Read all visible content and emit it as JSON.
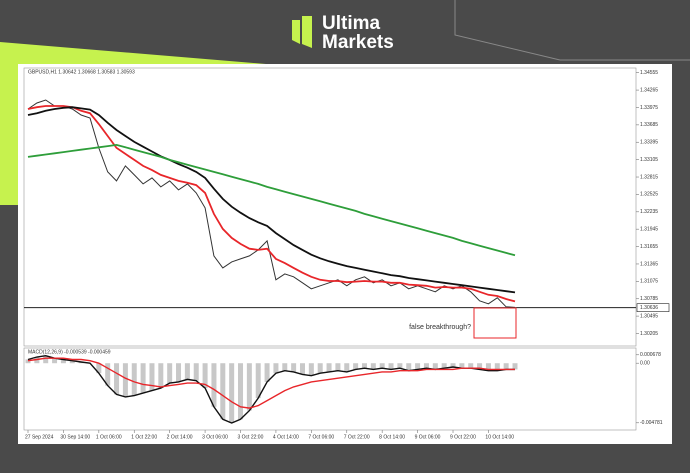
{
  "brand": {
    "line1": "Ultima",
    "line2": "Markets"
  },
  "chart_data": [
    {
      "type": "line",
      "title": "GBPUSD,H1  1.30642 1.30668 1.30583 1.30593",
      "annotation": "false breakthrough?",
      "current_price": 1.30636,
      "categories": [
        "27 Sep 2024",
        null,
        null,
        null,
        "30 Sep 14:00",
        null,
        null,
        null,
        "1 Oct 06:00",
        null,
        null,
        null,
        "1 Oct 22:00",
        null,
        null,
        null,
        "2 Oct 14:00",
        null,
        null,
        null,
        "3 Oct 06:00",
        null,
        null,
        null,
        "3 Oct 22:00",
        null,
        null,
        null,
        "4 Oct 14:00",
        null,
        null,
        null,
        "7 Oct 06:00",
        null,
        null,
        null,
        "7 Oct 22:00",
        null,
        null,
        null,
        "8 Oct 14:00",
        null,
        null,
        null,
        "9 Oct 06:00",
        null,
        null,
        null,
        "9 Oct 22:00",
        null,
        null,
        null,
        "10 Oct 14:00",
        null,
        null,
        null
      ],
      "ylim": [
        1.3003,
        1.346
      ],
      "yticks": [
        1.34555,
        1.34265,
        1.33975,
        1.33685,
        1.33395,
        1.33105,
        1.32815,
        1.32525,
        1.32235,
        1.31945,
        1.31655,
        1.31365,
        1.31075,
        1.30785,
        1.30495,
        1.30205
      ],
      "series": [
        {
          "color": "#333333",
          "width": 1,
          "values": [
            1.3395,
            1.3405,
            1.341,
            1.34,
            1.34,
            1.3395,
            1.3385,
            1.338,
            1.333,
            1.329,
            1.3275,
            1.33,
            1.3285,
            1.327,
            1.328,
            1.3265,
            1.3275,
            1.326,
            1.327,
            1.3255,
            1.323,
            1.315,
            1.313,
            1.314,
            1.3145,
            1.315,
            1.316,
            1.3175,
            1.311,
            1.312,
            1.3115,
            1.3105,
            1.3095,
            1.31,
            1.3105,
            1.311,
            1.31,
            1.311,
            1.3115,
            1.3105,
            1.311,
            1.31,
            1.3105,
            1.3095,
            1.31,
            1.3095,
            1.309,
            1.31,
            1.3095,
            1.31,
            1.309,
            1.3075,
            1.307,
            1.308,
            1.3065,
            1.3064
          ]
        },
        {
          "color": "#e8262a",
          "width": 1.8,
          "values": [
            1.3395,
            1.3398,
            1.34,
            1.34,
            1.34,
            1.3398,
            1.3392,
            1.3388,
            1.337,
            1.335,
            1.333,
            1.332,
            1.331,
            1.33,
            1.3293,
            1.3285,
            1.328,
            1.3275,
            1.3272,
            1.3268,
            1.3255,
            1.322,
            1.3195,
            1.318,
            1.317,
            1.3162,
            1.316,
            1.3162,
            1.3145,
            1.3138,
            1.313,
            1.3122,
            1.3115,
            1.311,
            1.3108,
            1.3108,
            1.3106,
            1.3107,
            1.3108,
            1.3107,
            1.3107,
            1.3105,
            1.3105,
            1.3102,
            1.3101,
            1.31,
            1.3097,
            1.3098,
            1.3097,
            1.3097,
            1.3095,
            1.309,
            1.3085,
            1.3083,
            1.3078,
            1.3074
          ]
        },
        {
          "color": "#111111",
          "width": 1.8,
          "values": [
            1.3385,
            1.3388,
            1.3392,
            1.3395,
            1.3397,
            1.3398,
            1.3396,
            1.3394,
            1.3385,
            1.3372,
            1.336,
            1.335,
            1.334,
            1.3332,
            1.3324,
            1.3316,
            1.331,
            1.3303,
            1.3297,
            1.329,
            1.328,
            1.3262,
            1.3245,
            1.3232,
            1.3222,
            1.3213,
            1.3206,
            1.32,
            1.3188,
            1.3178,
            1.3168,
            1.316,
            1.3152,
            1.3146,
            1.3141,
            1.3137,
            1.3133,
            1.313,
            1.3127,
            1.3124,
            1.3121,
            1.3118,
            1.3116,
            1.3113,
            1.3111,
            1.3109,
            1.3107,
            1.3105,
            1.3103,
            1.3101,
            1.3099,
            1.3097,
            1.3095,
            1.3093,
            1.3091,
            1.3089
          ]
        },
        {
          "color": "#2e9e3a",
          "width": 1.8,
          "values": [
            1.3315,
            1.3317,
            1.3319,
            1.3321,
            1.3323,
            1.3325,
            1.3327,
            1.3329,
            1.3331,
            1.3333,
            1.3335,
            1.3331,
            1.3327,
            1.3323,
            1.3319,
            1.3315,
            1.331,
            1.3306,
            1.3302,
            1.3298,
            1.3294,
            1.329,
            1.3286,
            1.3282,
            1.3278,
            1.3274,
            1.327,
            1.3265,
            1.3261,
            1.3257,
            1.3253,
            1.3249,
            1.3245,
            1.3241,
            1.3237,
            1.3233,
            1.3229,
            1.3225,
            1.322,
            1.3216,
            1.3212,
            1.3208,
            1.3204,
            1.32,
            1.3196,
            1.3192,
            1.3188,
            1.3184,
            1.318,
            1.3175,
            1.3171,
            1.3167,
            1.3163,
            1.3159,
            1.3155,
            1.3151
          ]
        }
      ]
    },
    {
      "type": "line",
      "title": "MACD(12,26,9) -0.000539 -0.000459",
      "ylim": [
        -0.0052,
        0.0009
      ],
      "yticks": [
        0.000678,
        {
          "value": 0,
          "label": "0.00"
        },
        -0.004781
      ],
      "series": [
        {
          "color": "#111111",
          "width": 1.4,
          "bars": "#c8c8c8",
          "values": [
            0.0003,
            0.0005,
            0.0006,
            0.0004,
            0.0003,
            0.0002,
            0.0001,
            0.0,
            -0.0008,
            -0.0018,
            -0.0025,
            -0.0027,
            -0.0026,
            -0.0024,
            -0.0022,
            -0.002,
            -0.0016,
            -0.0015,
            -0.0013,
            -0.0014,
            -0.002,
            -0.0035,
            -0.0045,
            -0.0048,
            -0.0045,
            -0.0038,
            -0.0028,
            -0.0015,
            -0.0008,
            -0.0006,
            -0.0007,
            -0.0009,
            -0.001,
            -0.0008,
            -0.0007,
            -0.0006,
            -0.0007,
            -0.0005,
            -0.0004,
            -0.0005,
            -0.0004,
            -0.0005,
            -0.0004,
            -0.0006,
            -0.0005,
            -0.0004,
            -0.0005,
            -0.0004,
            -0.0003,
            -0.0004,
            -0.0004,
            -0.0005,
            -0.0006,
            -0.0006,
            -0.0005,
            -0.0005
          ]
        },
        {
          "color": "#e8262a",
          "width": 1.4,
          "values": [
            0.0002,
            0.0003,
            0.0004,
            0.0004,
            0.0004,
            0.0003,
            0.0003,
            0.0002,
            0.0,
            -0.0004,
            -0.0008,
            -0.0012,
            -0.0015,
            -0.0017,
            -0.0018,
            -0.0019,
            -0.0018,
            -0.0017,
            -0.0016,
            -0.0016,
            -0.0017,
            -0.0021,
            -0.0026,
            -0.0031,
            -0.0035,
            -0.0036,
            -0.0034,
            -0.003,
            -0.0026,
            -0.0022,
            -0.0019,
            -0.0017,
            -0.0015,
            -0.0014,
            -0.0013,
            -0.0012,
            -0.0011,
            -0.001,
            -0.0009,
            -0.0008,
            -0.0007,
            -0.0007,
            -0.0006,
            -0.0006,
            -0.0006,
            -0.0005,
            -0.0005,
            -0.0005,
            -0.0005,
            -0.0004,
            -0.0004,
            -0.0004,
            -0.0005,
            -0.0005,
            -0.0005,
            -0.0005
          ]
        }
      ]
    }
  ]
}
